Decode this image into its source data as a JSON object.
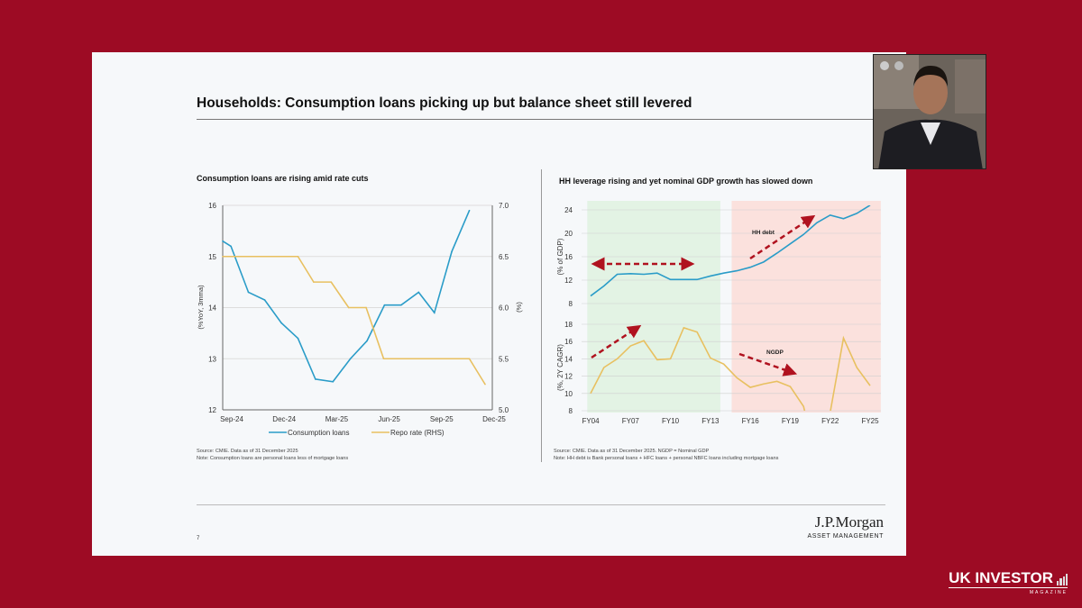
{
  "slide": {
    "title": "Households: Consumption loans picking up but balance sheet still levered",
    "page_number": "7",
    "logo": {
      "name": "J.P.Morgan",
      "subtitle": "ASSET MANAGEMENT"
    }
  },
  "overlay": {
    "brand": "UK INVESTOR",
    "brand_sub": "MAGAZINE",
    "background": "#9d0b24"
  },
  "chart_data": [
    {
      "type": "line",
      "title": "Consumption loans are rising amid rate cuts",
      "ylabel": "(%YoY, 3mma)",
      "y2label": "(%)",
      "x_ticks": [
        "Sep-24",
        "Dec-24",
        "Mar-25",
        "Jun-25",
        "Sep-25",
        "Dec-25"
      ],
      "ylim": [
        12,
        16
      ],
      "y_ticks": [
        "12",
        "13",
        "14",
        "15",
        "16"
      ],
      "y2lim": [
        5.0,
        7.0
      ],
      "y2_ticks": [
        "5.0",
        "5.5",
        "6.0",
        "6.5",
        "7.0"
      ],
      "grid": true,
      "legend_position": "bottom",
      "series": [
        {
          "name": "Consumption loans",
          "axis": "left",
          "color": "#2a9cc8",
          "x_month_index": [
            0,
            0.47,
            1.47,
            2.4,
            3.35,
            4.3,
            5.3,
            6.3,
            7.3,
            8.25,
            9.25,
            10.2,
            11.2,
            12.1,
            13.1,
            14.1
          ],
          "values": [
            15.3,
            15.2,
            14.3,
            14.15,
            13.7,
            13.4,
            12.6,
            12.55,
            13.0,
            13.35,
            14.05,
            14.05,
            14.3,
            13.9,
            15.1,
            15.9
          ]
        },
        {
          "name": "Repo rate (RHS)",
          "axis": "right",
          "color": "#e8c060",
          "x_month_index": [
            0,
            4.3,
            5.2,
            6.2,
            7.2,
            8.2,
            9.2,
            14.1,
            15
          ],
          "values": [
            6.5,
            6.5,
            6.25,
            6.25,
            6.0,
            6.0,
            5.5,
            5.5,
            5.25
          ]
        }
      ],
      "source": "Source: CMIE. Data as of 31 December 2025",
      "note": "Note: Consumption loans are personal loans less of mortgage loans"
    },
    {
      "type": "line",
      "title": "HH leverage rising and yet nominal GDP growth has slowed down",
      "categories": [
        "FY04",
        "FY05",
        "FY06",
        "FY07",
        "FY08",
        "FY09",
        "FY10",
        "FY11",
        "FY12",
        "FY13",
        "FY14",
        "FY15",
        "FY16",
        "FY17",
        "FY18",
        "FY19",
        "FY20",
        "FY21",
        "FY22",
        "FY23",
        "FY24",
        "FY25"
      ],
      "x_ticks": [
        "FY04",
        "FY07",
        "FY10",
        "FY13",
        "FY16",
        "FY19",
        "FY22",
        "FY25"
      ],
      "panels": [
        {
          "ylabel": "(% of GDP)",
          "ylim": [
            8,
            24
          ],
          "y_ticks": [
            "8",
            "12",
            "16",
            "20",
            "24"
          ],
          "series": [
            {
              "name": "HH debt",
              "color": "#2a9cc8",
              "values": [
                9.3,
                11.0,
                13.0,
                13.1,
                13.0,
                13.2,
                12.1,
                12.1,
                12.1,
                12.7,
                13.2,
                13.6,
                14.2,
                15.1,
                16.6,
                18.2,
                19.8,
                21.8,
                23.1,
                22.5,
                23.4,
                24.8
              ]
            }
          ]
        },
        {
          "ylabel": "(%, 2Y CAGR)",
          "ylim": [
            8,
            18
          ],
          "y_ticks": [
            "8",
            "10",
            "12",
            "14",
            "16",
            "18"
          ],
          "series": [
            {
              "name": "NGDP",
              "color": "#e8c060",
              "values": [
                10.0,
                13.0,
                14.0,
                15.5,
                16.1,
                13.9,
                14.0,
                17.6,
                17.1,
                14.1,
                13.4,
                11.8,
                10.7,
                11.1,
                11.4,
                10.8,
                8.5,
                2.0,
                7.8,
                16.4,
                13.0,
                10.9
              ]
            }
          ]
        }
      ],
      "shaded_regions": [
        {
          "from": "FY04",
          "to": "FY13",
          "color": "#e3f3e4"
        },
        {
          "from": "FY15",
          "to": "FY25",
          "color": "#fbe1dd"
        }
      ],
      "annotations": [
        "HH debt",
        "NGDP"
      ],
      "grid": true,
      "source": "Source: CMIE. Data as of 31 December 2025. NGDP = Nominal GDP",
      "note": "Note: HH debt is Bank personal loans + HFC loans + personal NBFC loans including mortgage loans"
    }
  ]
}
